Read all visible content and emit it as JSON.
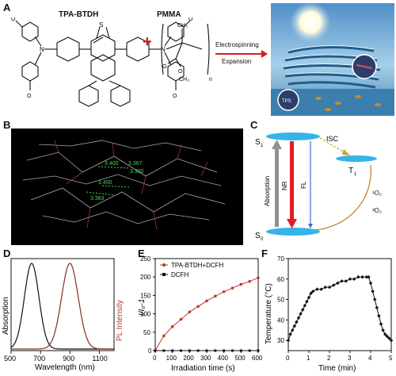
{
  "panels": {
    "a": "A",
    "b": "B",
    "c": "C",
    "d": "D",
    "e": "E",
    "f": "F"
  },
  "panel_a": {
    "molecule_name": "TPA-BTDH",
    "polymer_name": "PMMA",
    "plus": "+",
    "process_line1": "Electrospinning",
    "process_line2": "Expansion",
    "subscript_n": "n",
    "tps_label": "TPS",
    "atom_labels": {
      "s": "S",
      "n": "N",
      "o": "O",
      "methoxy": "O",
      "ch3": "CH₃",
      "methyl": "CH₃"
    }
  },
  "panel_b": {
    "distances": [
      "3.400",
      "3.367",
      "3.360",
      "3.450",
      "3.383"
    ]
  },
  "panel_c": {
    "s1": "S",
    "s1_sub": "1",
    "s0": "S",
    "s0_sub": "0",
    "t1": "T",
    "t1_sub": "1",
    "isc": "ISC",
    "absorption": "Absorption",
    "nr": "NR",
    "fl": "FL",
    "singlet_o2": "¹O₂",
    "triplet_o2": "³O₂",
    "colors": {
      "level": "#36b3e8",
      "absorption": "#909090",
      "nr": "#e21d24",
      "isc": "#c9a227",
      "o2": "#c07a1f"
    }
  },
  "chart_data": [
    {
      "type": "line",
      "panel": "D",
      "xlabel": "Wavelength (nm)",
      "ylabel_left": "Absorption",
      "ylabel_right": "PL Intensity",
      "xlim": [
        500,
        1200
      ],
      "xticks": [
        500,
        700,
        900,
        1100
      ],
      "series": [
        {
          "peak": 640,
          "width": 70,
          "color": "#111111",
          "x": [
            500,
            540,
            580,
            610,
            640,
            670,
            700,
            740,
            780,
            820
          ],
          "values": [
            0.05,
            0.18,
            0.55,
            0.85,
            1.0,
            0.88,
            0.62,
            0.27,
            0.08,
            0.02
          ]
        },
        {
          "peak": 900,
          "width": 80,
          "color": "#8b2a20",
          "x": [
            700,
            760,
            820,
            860,
            900,
            940,
            980,
            1030,
            1080,
            1150
          ],
          "values": [
            0.02,
            0.1,
            0.42,
            0.78,
            1.0,
            0.85,
            0.55,
            0.25,
            0.1,
            0.03
          ]
        }
      ]
    },
    {
      "type": "line",
      "panel": "E",
      "xlabel": "Irradiation time (s)",
      "ylabel": "I/I₀-1",
      "xlim": [
        0,
        600
      ],
      "ylim": [
        0,
        250
      ],
      "xticks": [
        0,
        100,
        200,
        300,
        400,
        500,
        600
      ],
      "yticks": [
        0,
        50,
        100,
        150,
        200,
        250
      ],
      "series": [
        {
          "name": "TPA-BTDH+DCFH",
          "color": "#c0392b",
          "x": [
            0,
            50,
            100,
            150,
            200,
            250,
            300,
            350,
            400,
            450,
            500,
            550,
            600
          ],
          "values": [
            0,
            40,
            65,
            85,
            105,
            120,
            135,
            148,
            160,
            170,
            180,
            188,
            198
          ]
        },
        {
          "name": "DCFH",
          "color": "#111111",
          "x": [
            0,
            50,
            100,
            150,
            200,
            250,
            300,
            350,
            400,
            450,
            500,
            550,
            600
          ],
          "values": [
            0,
            0,
            0,
            0,
            0,
            0,
            0,
            0,
            0,
            0,
            0,
            0,
            0
          ]
        }
      ]
    },
    {
      "type": "line",
      "panel": "F",
      "xlabel": "Time (min)",
      "ylabel": "Temperature (°C)",
      "xlim": [
        0,
        5
      ],
      "ylim": [
        25,
        70
      ],
      "xticks": [
        0,
        1,
        2,
        3,
        4,
        5
      ],
      "yticks": [
        30,
        40,
        50,
        60,
        70
      ],
      "series": [
        {
          "color": "#111111",
          "x": [
            0,
            0.1,
            0.2,
            0.3,
            0.4,
            0.5,
            0.6,
            0.7,
            0.8,
            0.9,
            1.0,
            1.1,
            1.2,
            1.4,
            1.6,
            1.8,
            2.0,
            2.2,
            2.4,
            2.6,
            2.8,
            3.0,
            3.2,
            3.4,
            3.6,
            3.8,
            3.9,
            4.0,
            4.1,
            4.2,
            4.3,
            4.4,
            4.5,
            4.6,
            4.7,
            4.8,
            4.9,
            5.0
          ],
          "values": [
            30,
            33,
            35,
            37,
            39,
            41,
            43,
            45,
            47,
            49,
            51,
            53,
            54,
            55,
            55,
            56,
            56,
            57,
            58,
            59,
            59,
            60,
            60,
            61,
            61,
            61,
            61,
            58,
            54,
            50,
            46,
            42,
            38,
            35,
            33,
            32,
            31,
            30
          ]
        }
      ]
    }
  ]
}
